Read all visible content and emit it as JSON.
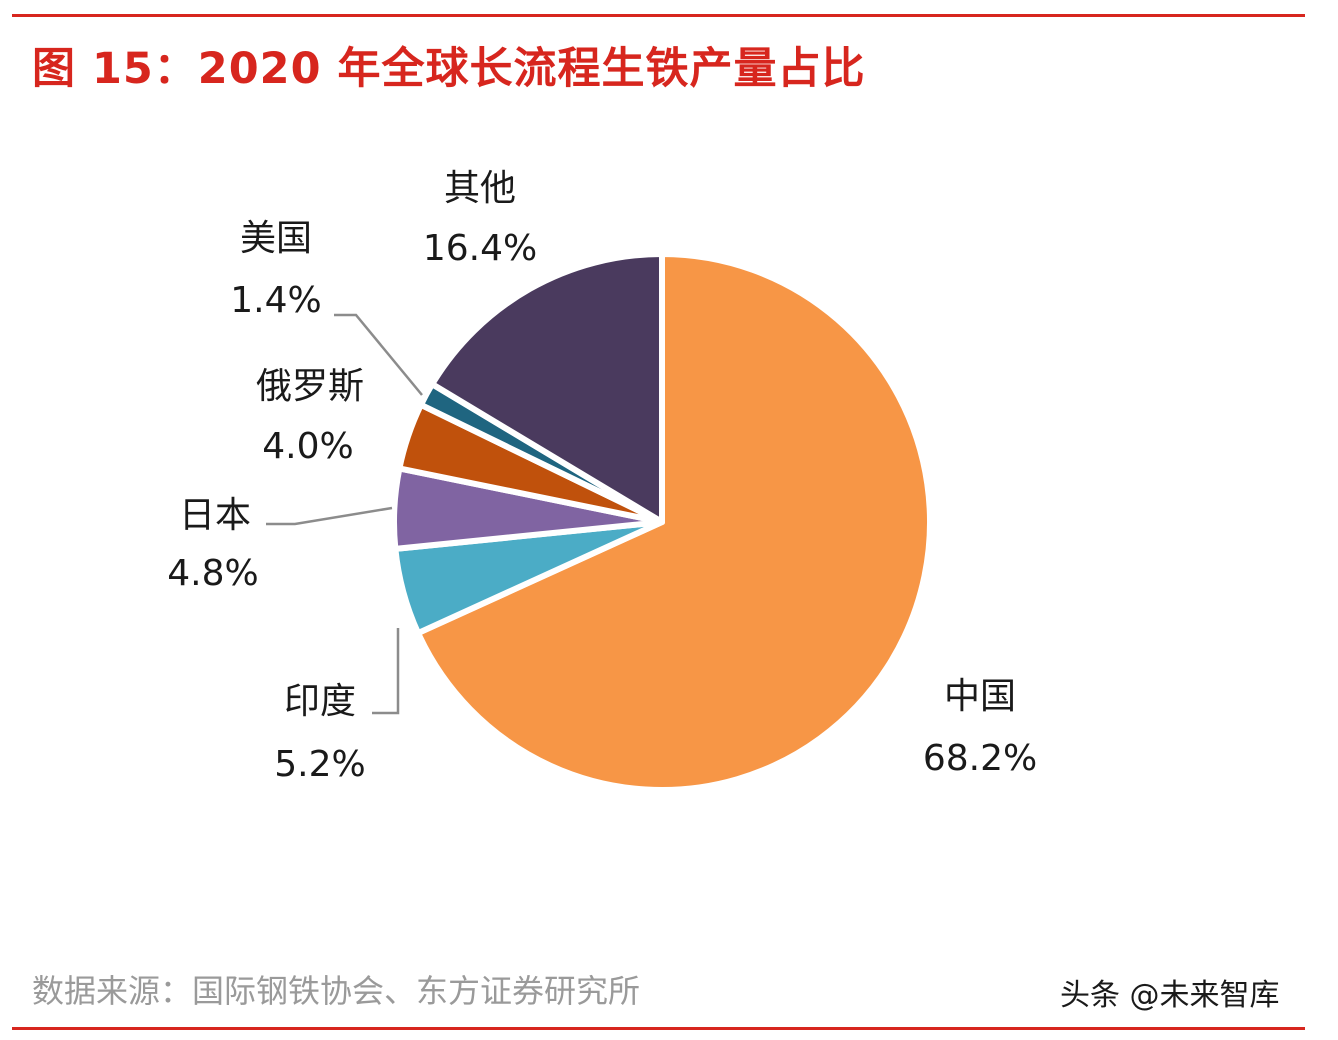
{
  "header": {
    "title": "图 15：2020 年全球长流程生铁产量占比"
  },
  "footer": {
    "source": "数据来源：国际钢铁协会、东方证券研究所",
    "watermark": "头条 @未来智库"
  },
  "colors": {
    "accent": "#d7261e"
  },
  "chart_data": {
    "type": "pie",
    "title": "",
    "start": "12 o'clock, clockwise",
    "slices": [
      {
        "name": "中国",
        "label": "68.2%",
        "value": 68.2,
        "color": "#f79646"
      },
      {
        "name": "印度",
        "label": "5.2%",
        "value": 5.2,
        "color": "#4bacc6"
      },
      {
        "name": "日本",
        "label": "4.8%",
        "value": 4.8,
        "color": "#8064a2"
      },
      {
        "name": "俄罗斯",
        "label": "4.0%",
        "value": 4.0,
        "color": "#c0510c"
      },
      {
        "name": "美国",
        "label": "1.4%",
        "value": 1.4,
        "color": "#1f6580"
      },
      {
        "name": "其他",
        "label": "16.4%",
        "value": 16.4,
        "color": "#4a3a5e"
      }
    ]
  }
}
